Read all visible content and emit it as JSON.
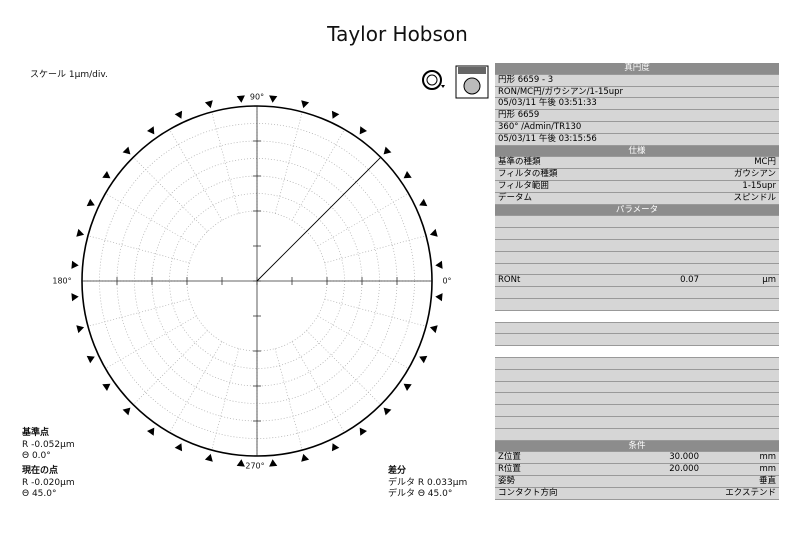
{
  "header": {
    "title": "Taylor Hobson",
    "scale": "スケール 1μm/div."
  },
  "plot": {
    "labels": {
      "top": "90°",
      "left": "180°",
      "right": "0°",
      "bottom": "270°"
    }
  },
  "reference_point": {
    "title": "基準点",
    "r": "R -0.052μm",
    "theta": "Θ 0.0°"
  },
  "current_point": {
    "title": "現在の点",
    "r": "R -0.020μm",
    "theta": "Θ 45.0°"
  },
  "difference": {
    "title": "差分",
    "delta_r": "デルタ R 0.033μm",
    "delta_theta": "デルタ Θ 45.0°"
  },
  "panel": {
    "roundness": {
      "header": "真円度",
      "rows": [
        [
          "円形 6659 - 3"
        ],
        [
          "RON/MC円/ガウシアン/1-15upr"
        ],
        [
          "05/03/11 午後 03:51:33"
        ],
        [
          "円形 6659"
        ],
        [
          "360° /Admin/TR130"
        ],
        [
          "05/03/11 午後 03:15:56"
        ]
      ]
    },
    "spec": {
      "header": "仕様",
      "rows": [
        [
          "基準の種類",
          "MC円"
        ],
        [
          "フィルタの種類",
          "ガウシアン"
        ],
        [
          "フィルタ範囲",
          "1-15upr"
        ],
        [
          "データム",
          "スピンドル"
        ]
      ]
    },
    "parameters": {
      "header": "パラメータ",
      "rows": [
        [
          "RONt",
          "0.07",
          "μm"
        ]
      ]
    },
    "conditions": {
      "header": "条件",
      "rows": [
        [
          "Z位置",
          "30.000",
          "mm"
        ],
        [
          "R位置",
          "20.000",
          "mm"
        ],
        [
          "姿勢",
          "垂直"
        ],
        [
          "コンタクト方向",
          "エクステンド"
        ]
      ]
    }
  }
}
